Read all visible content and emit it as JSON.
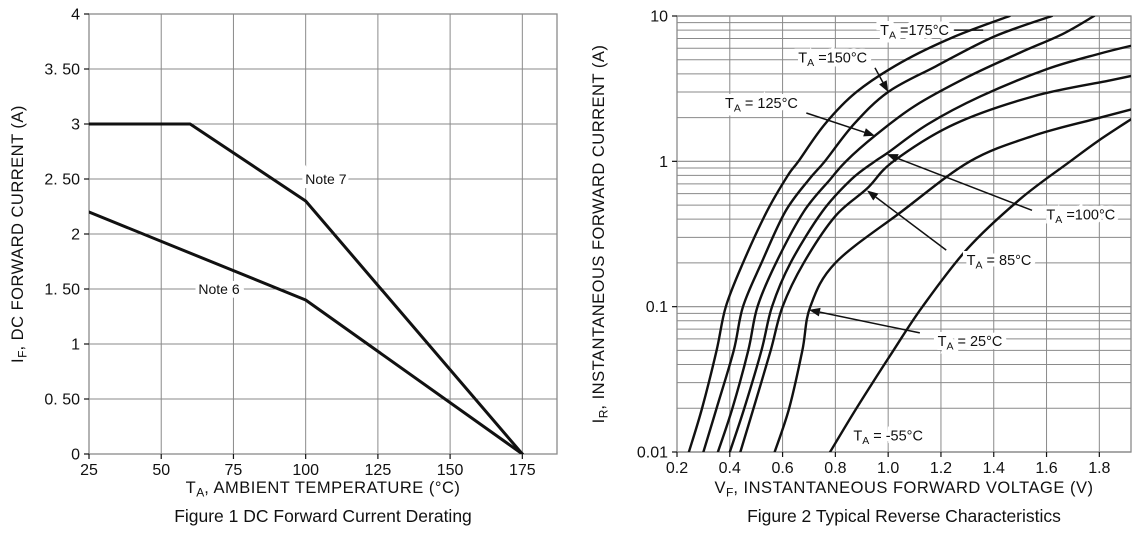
{
  "colors": {
    "ink": "#111111",
    "grid": "#8a8a8a",
    "background": "#ffffff"
  },
  "chart_data": [
    {
      "type": "line",
      "title": "Figure 1 DC Forward Current Derating",
      "xlabel": {
        "main": "T",
        "sub": "A",
        "rest": ", AMBIENT TEMPERATURE (°C)"
      },
      "ylabel": {
        "main": "I",
        "sub": "F",
        "rest": ", DC FORWARD CURRENT (A)"
      },
      "y_scale": "linear",
      "xlim": [
        25,
        187
      ],
      "ylim": [
        0,
        4
      ],
      "x_ticks": [
        25,
        50,
        75,
        100,
        125,
        150,
        175
      ],
      "x_tick_labels": [
        "25",
        "50",
        "75",
        "100",
        "125",
        "150",
        "175"
      ],
      "y_ticks": [
        0,
        0.5,
        1,
        1.5,
        2,
        2.5,
        3,
        3.5,
        4
      ],
      "y_tick_labels": [
        "0",
        "0. 50",
        "1",
        "1. 50",
        "2",
        "2. 50",
        "3",
        "3. 50",
        "4"
      ],
      "grid": true,
      "series": [
        {
          "name": "Note 7",
          "points": [
            [
              25,
              3
            ],
            [
              60,
              3
            ],
            [
              100,
              2.3
            ],
            [
              175,
              0
            ]
          ]
        },
        {
          "name": "Note 6",
          "points": [
            [
              25,
              2.2
            ],
            [
              100,
              1.4
            ],
            [
              175,
              0
            ]
          ]
        }
      ],
      "annotations": [
        {
          "text": "Note 7",
          "x": 107,
          "y": 2.5
        },
        {
          "text": "Note 6",
          "x": 70,
          "y": 1.5
        }
      ]
    },
    {
      "type": "line",
      "title": "Figure 2 Typical Reverse Characteristics",
      "xlabel": {
        "main": "V",
        "sub": "F",
        "rest": ", INSTANTANEOUS FORWARD VOLTAGE (V)"
      },
      "ylabel": {
        "main": "I",
        "sub": "R",
        "rest": ", INSTANTANEOUS FORWARD CURRENT (A)"
      },
      "y_scale": "log",
      "xlim": [
        0.2,
        1.92
      ],
      "ylim": [
        0.01,
        10
      ],
      "x_ticks": [
        0.2,
        0.4,
        0.6,
        0.8,
        1.0,
        1.2,
        1.4,
        1.6,
        1.8
      ],
      "x_tick_labels": [
        "0.2",
        "0.4",
        "0.6",
        "0.8",
        "1.0",
        "1.2",
        "1.4",
        "1.6",
        "1.8"
      ],
      "y_ticks": [
        0.01,
        0.1,
        1,
        10
      ],
      "y_tick_labels": [
        "0.01",
        "0.1",
        "1",
        "10"
      ],
      "grid": true,
      "series": [
        {
          "name": "TA =175°C",
          "points": [
            [
              0.245,
              0.01
            ],
            [
              0.295,
              0.02
            ],
            [
              0.35,
              0.05
            ],
            [
              0.385,
              0.1
            ],
            [
              0.45,
              0.2
            ],
            [
              0.54,
              0.45
            ],
            [
              0.62,
              0.8
            ],
            [
              0.66,
              1.0
            ],
            [
              0.76,
              1.8
            ],
            [
              0.88,
              3.0
            ],
            [
              1.05,
              4.8
            ],
            [
              1.25,
              7.2
            ],
            [
              1.46,
              10
            ]
          ]
        },
        {
          "name": "TA =150°C",
          "points": [
            [
              0.3,
              0.01
            ],
            [
              0.35,
              0.02
            ],
            [
              0.415,
              0.05
            ],
            [
              0.45,
              0.1
            ],
            [
              0.52,
              0.2
            ],
            [
              0.61,
              0.45
            ],
            [
              0.7,
              0.75
            ],
            [
              0.76,
              1.0
            ],
            [
              0.87,
              1.8
            ],
            [
              1.0,
              3.0
            ],
            [
              1.18,
              4.5
            ],
            [
              1.4,
              7.2
            ],
            [
              1.62,
              10
            ]
          ]
        },
        {
          "name": "TA = 125°C",
          "points": [
            [
              0.355,
              0.01
            ],
            [
              0.41,
              0.02
            ],
            [
              0.47,
              0.05
            ],
            [
              0.505,
              0.1
            ],
            [
              0.575,
              0.2
            ],
            [
              0.68,
              0.45
            ],
            [
              0.78,
              0.75
            ],
            [
              0.84,
              1.0
            ],
            [
              0.95,
              1.5
            ],
            [
              1.1,
              2.4
            ],
            [
              1.3,
              3.8
            ],
            [
              1.5,
              5.6
            ],
            [
              1.66,
              7.5
            ],
            [
              1.78,
              10
            ]
          ]
        },
        {
          "name": "TA =100°C",
          "points": [
            [
              0.4,
              0.01
            ],
            [
              0.455,
              0.02
            ],
            [
              0.52,
              0.05
            ],
            [
              0.56,
              0.1
            ],
            [
              0.63,
              0.2
            ],
            [
              0.75,
              0.45
            ],
            [
              0.86,
              0.75
            ],
            [
              0.95,
              1.0
            ],
            [
              1.0,
              1.15
            ],
            [
              1.15,
              1.8
            ],
            [
              1.35,
              2.8
            ],
            [
              1.6,
              4.3
            ],
            [
              1.8,
              5.5
            ],
            [
              1.93,
              6.3
            ]
          ]
        },
        {
          "name": "TA = 85°C",
          "points": [
            [
              0.44,
              0.01
            ],
            [
              0.49,
              0.02
            ],
            [
              0.555,
              0.05
            ],
            [
              0.6,
              0.1
            ],
            [
              0.68,
              0.2
            ],
            [
              0.8,
              0.42
            ],
            [
              0.92,
              0.65
            ],
            [
              1.02,
              1.0
            ],
            [
              1.25,
              1.8
            ],
            [
              1.55,
              2.8
            ],
            [
              1.84,
              3.6
            ],
            [
              1.93,
              3.9
            ]
          ]
        },
        {
          "name": "TA = 25°C",
          "points": [
            [
              0.57,
              0.01
            ],
            [
              0.625,
              0.02
            ],
            [
              0.675,
              0.05
            ],
            [
              0.705,
              0.1
            ],
            [
              0.8,
              0.2
            ],
            [
              1.05,
              0.45
            ],
            [
              1.31,
              1.0
            ],
            [
              1.55,
              1.5
            ],
            [
              1.78,
              1.95
            ],
            [
              1.93,
              2.3
            ]
          ]
        },
        {
          "name": "TA = -55°C",
          "points": [
            [
              0.78,
              0.01
            ],
            [
              0.88,
              0.02
            ],
            [
              1.02,
              0.05
            ],
            [
              1.13,
              0.1
            ],
            [
              1.3,
              0.25
            ],
            [
              1.5,
              0.55
            ],
            [
              1.69,
              1.0
            ],
            [
              1.8,
              1.4
            ],
            [
              1.93,
              2.0
            ]
          ]
        }
      ],
      "temp_labels": [
        {
          "main": "T",
          "sub": "A",
          "rest": " =175°C",
          "x": 1.1,
          "y": 8.0,
          "dash": [
            [
              1.25,
              8.0
            ],
            [
              1.36,
              8.0
            ]
          ]
        },
        {
          "main": "T",
          "sub": "A",
          "rest": " =150°C",
          "x": 0.79,
          "y": 5.2,
          "arrow": [
            [
              0.95,
              4.4
            ],
            [
              1.0,
              3.0
            ]
          ]
        },
        {
          "main": "T",
          "sub": "A",
          "rest": " = 125°C",
          "x": 0.52,
          "y": 2.52,
          "arrow": [
            [
              0.69,
              2.15
            ],
            [
              0.95,
              1.5
            ]
          ]
        },
        {
          "main": "T",
          "sub": "A",
          "rest": " =100°C",
          "x": 1.73,
          "y": 0.43,
          "arrow": [
            [
              1.545,
              0.46
            ],
            [
              0.995,
              1.12
            ]
          ]
        },
        {
          "main": "T",
          "sub": "A",
          "rest": " = 85°C",
          "x": 1.42,
          "y": 0.21,
          "arrow": [
            [
              1.22,
              0.245
            ],
            [
              0.92,
              0.63
            ]
          ]
        },
        {
          "main": "T",
          "sub": "A",
          "rest": " = 25°C",
          "x": 1.31,
          "y": 0.058,
          "arrow": [
            [
              1.12,
              0.066
            ],
            [
              0.7,
              0.095
            ]
          ]
        },
        {
          "main": "T",
          "sub": "A",
          "rest": " = -55°C",
          "x": 1.0,
          "y": 0.013
        }
      ]
    }
  ]
}
